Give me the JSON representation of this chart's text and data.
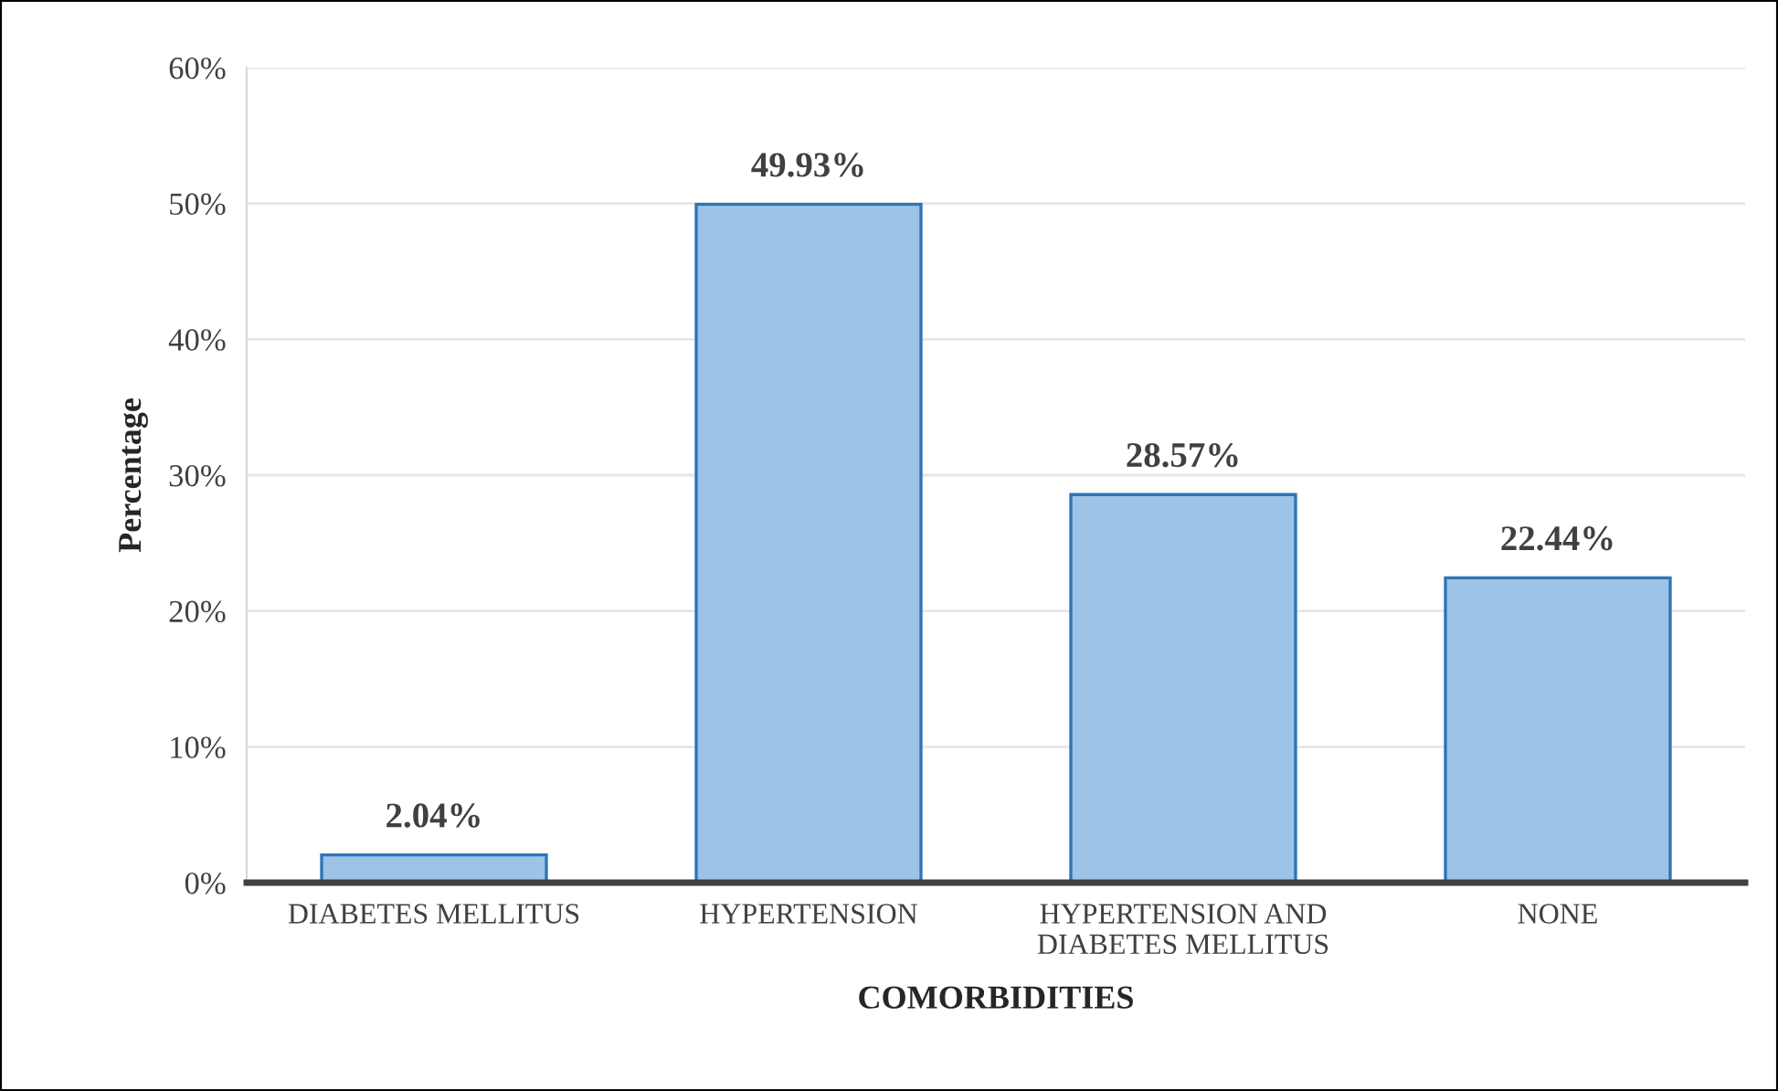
{
  "chart_data": {
    "type": "bar",
    "xlabel": "COMORBIDITIES",
    "ylabel": "Percentage",
    "categories": [
      "DIABETES MELLITUS",
      "HYPERTENSION",
      "HYPERTENSION AND\nDIABETES MELLITUS",
      "NONE"
    ],
    "values": [
      2.04,
      49.93,
      28.57,
      22.44
    ],
    "value_labels": [
      "2.04%",
      "49.93%",
      "28.57%",
      "22.44%"
    ],
    "color": "#9dc3e6",
    "ylim": [
      0,
      60
    ],
    "yticks": [
      {
        "value": 0,
        "label": "0%"
      },
      {
        "value": 10,
        "label": "10%"
      },
      {
        "value": 20,
        "label": "20%"
      },
      {
        "value": 30,
        "label": "30%"
      },
      {
        "value": 40,
        "label": "40%"
      },
      {
        "value": 50,
        "label": "50%"
      },
      {
        "value": 60,
        "label": "60%"
      }
    ],
    "grid": "y"
  }
}
